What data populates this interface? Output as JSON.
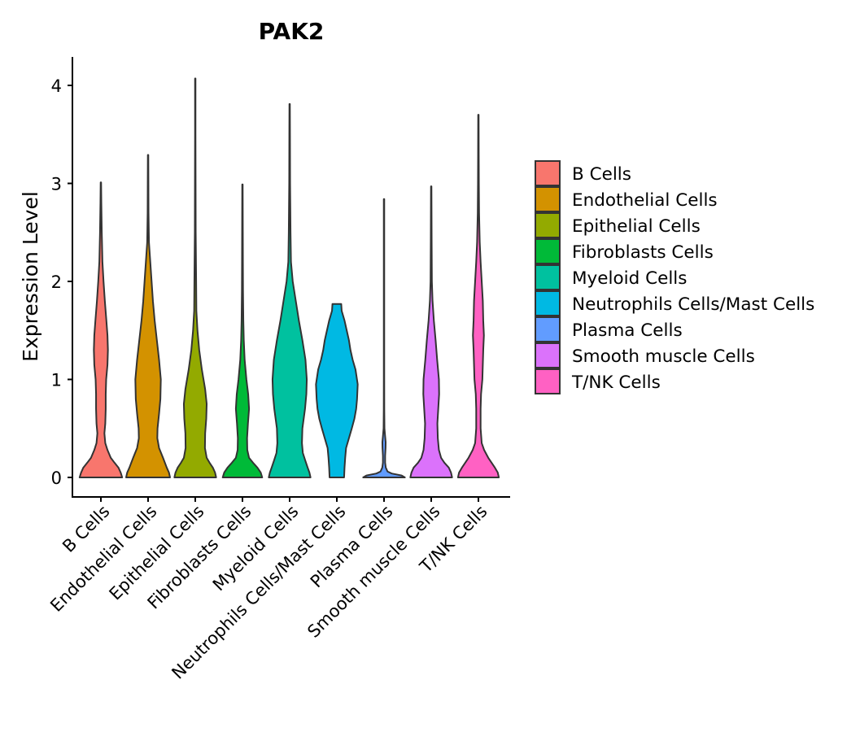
{
  "chart_data": {
    "type": "violin",
    "title": "PAK2",
    "xlabel": "",
    "ylabel": "Expression Level",
    "ylim": [
      0,
      4.3
    ],
    "yticks": [
      0,
      1,
      2,
      3,
      4
    ],
    "categories": [
      "B Cells",
      "Endothelial Cells",
      "Epithelial Cells",
      "Fibroblasts Cells",
      "Myeloid Cells",
      "Neutrophils Cells/Mast Cells",
      "Plasma Cells",
      "Smooth muscle Cells",
      "T/NK Cells"
    ],
    "colors": [
      "#F8766D",
      "#D39200",
      "#93AA00",
      "#00BA38",
      "#00C19F",
      "#00B9E3",
      "#619CFF",
      "#DB72FB",
      "#FF61C3"
    ],
    "max_values": [
      3.01,
      3.29,
      4.07,
      2.99,
      3.81,
      1.77,
      2.84,
      2.97,
      3.7
    ],
    "density_profiles": [
      [
        [
          0,
          0.97
        ],
        [
          0.05,
          0.9
        ],
        [
          0.1,
          0.8
        ],
        [
          0.15,
          0.62
        ],
        [
          0.2,
          0.45
        ],
        [
          0.28,
          0.3
        ],
        [
          0.35,
          0.2
        ],
        [
          0.45,
          0.16
        ],
        [
          0.55,
          0.2
        ],
        [
          0.7,
          0.22
        ],
        [
          0.85,
          0.22
        ],
        [
          1.0,
          0.24
        ],
        [
          1.15,
          0.3
        ],
        [
          1.3,
          0.32
        ],
        [
          1.45,
          0.3
        ],
        [
          1.6,
          0.25
        ],
        [
          1.8,
          0.18
        ],
        [
          2.0,
          0.12
        ],
        [
          2.2,
          0.07
        ],
        [
          2.5,
          0.04
        ],
        [
          2.8,
          0.02
        ],
        [
          3.01,
          0.01
        ]
      ],
      [
        [
          0,
          1.0
        ],
        [
          0.05,
          0.95
        ],
        [
          0.1,
          0.85
        ],
        [
          0.2,
          0.68
        ],
        [
          0.3,
          0.5
        ],
        [
          0.4,
          0.42
        ],
        [
          0.5,
          0.43
        ],
        [
          0.65,
          0.5
        ],
        [
          0.8,
          0.56
        ],
        [
          1.0,
          0.58
        ],
        [
          1.2,
          0.5
        ],
        [
          1.4,
          0.4
        ],
        [
          1.6,
          0.3
        ],
        [
          1.8,
          0.22
        ],
        [
          2.0,
          0.16
        ],
        [
          2.2,
          0.1
        ],
        [
          2.4,
          0.04
        ],
        [
          2.7,
          0.02
        ],
        [
          3.0,
          0.015
        ],
        [
          3.29,
          0.01
        ]
      ],
      [
        [
          0,
          0.95
        ],
        [
          0.05,
          0.9
        ],
        [
          0.1,
          0.8
        ],
        [
          0.15,
          0.65
        ],
        [
          0.2,
          0.52
        ],
        [
          0.3,
          0.44
        ],
        [
          0.45,
          0.45
        ],
        [
          0.6,
          0.5
        ],
        [
          0.75,
          0.52
        ],
        [
          0.9,
          0.45
        ],
        [
          1.1,
          0.3
        ],
        [
          1.3,
          0.18
        ],
        [
          1.5,
          0.1
        ],
        [
          1.7,
          0.05
        ],
        [
          2.0,
          0.04
        ],
        [
          2.5,
          0.02
        ],
        [
          3.0,
          0.015
        ],
        [
          3.5,
          0.01
        ],
        [
          4.07,
          0.01
        ]
      ],
      [
        [
          0,
          0.9
        ],
        [
          0.05,
          0.83
        ],
        [
          0.1,
          0.68
        ],
        [
          0.15,
          0.48
        ],
        [
          0.2,
          0.3
        ],
        [
          0.28,
          0.22
        ],
        [
          0.4,
          0.21
        ],
        [
          0.55,
          0.25
        ],
        [
          0.7,
          0.3
        ],
        [
          0.85,
          0.26
        ],
        [
          1.0,
          0.18
        ],
        [
          1.2,
          0.1
        ],
        [
          1.4,
          0.06
        ],
        [
          1.6,
          0.04
        ],
        [
          1.9,
          0.025
        ],
        [
          2.2,
          0.02
        ],
        [
          2.6,
          0.015
        ],
        [
          2.99,
          0.01
        ]
      ],
      [
        [
          0,
          0.95
        ],
        [
          0.05,
          0.9
        ],
        [
          0.1,
          0.82
        ],
        [
          0.18,
          0.7
        ],
        [
          0.25,
          0.6
        ],
        [
          0.35,
          0.56
        ],
        [
          0.5,
          0.58
        ],
        [
          0.7,
          0.7
        ],
        [
          0.85,
          0.76
        ],
        [
          1.0,
          0.78
        ],
        [
          1.2,
          0.72
        ],
        [
          1.4,
          0.58
        ],
        [
          1.6,
          0.42
        ],
        [
          1.8,
          0.28
        ],
        [
          2.0,
          0.14
        ],
        [
          2.2,
          0.06
        ],
        [
          2.5,
          0.04
        ],
        [
          3.0,
          0.02
        ],
        [
          3.5,
          0.015
        ],
        [
          3.81,
          0.01
        ]
      ],
      [
        [
          0,
          0.33
        ],
        [
          0.1,
          0.35
        ],
        [
          0.2,
          0.38
        ],
        [
          0.3,
          0.42
        ],
        [
          0.4,
          0.55
        ],
        [
          0.5,
          0.68
        ],
        [
          0.6,
          0.8
        ],
        [
          0.7,
          0.88
        ],
        [
          0.8,
          0.92
        ],
        [
          0.95,
          0.95
        ],
        [
          1.1,
          0.85
        ],
        [
          1.2,
          0.72
        ],
        [
          1.3,
          0.62
        ],
        [
          1.4,
          0.55
        ],
        [
          1.5,
          0.45
        ],
        [
          1.6,
          0.35
        ],
        [
          1.7,
          0.22
        ],
        [
          1.77,
          0.2
        ]
      ],
      [
        [
          0,
          0.95
        ],
        [
          0.02,
          0.8
        ],
        [
          0.04,
          0.35
        ],
        [
          0.06,
          0.16
        ],
        [
          0.1,
          0.08
        ],
        [
          0.15,
          0.05
        ],
        [
          0.22,
          0.05
        ],
        [
          0.3,
          0.07
        ],
        [
          0.36,
          0.075
        ],
        [
          0.42,
          0.05
        ],
        [
          0.5,
          0.02
        ],
        [
          0.7,
          0.012
        ],
        [
          1.0,
          0.01
        ],
        [
          1.5,
          0.01
        ],
        [
          2.0,
          0.01
        ],
        [
          2.5,
          0.01
        ],
        [
          2.84,
          0.01
        ]
      ],
      [
        [
          0,
          0.95
        ],
        [
          0.05,
          0.9
        ],
        [
          0.1,
          0.8
        ],
        [
          0.15,
          0.6
        ],
        [
          0.2,
          0.45
        ],
        [
          0.28,
          0.35
        ],
        [
          0.4,
          0.3
        ],
        [
          0.55,
          0.28
        ],
        [
          0.7,
          0.32
        ],
        [
          0.85,
          0.36
        ],
        [
          1.0,
          0.35
        ],
        [
          1.2,
          0.27
        ],
        [
          1.4,
          0.2
        ],
        [
          1.6,
          0.12
        ],
        [
          1.8,
          0.06
        ],
        [
          2.0,
          0.03
        ],
        [
          2.4,
          0.02
        ],
        [
          2.97,
          0.01
        ]
      ],
      [
        [
          0,
          0.93
        ],
        [
          0.05,
          0.88
        ],
        [
          0.1,
          0.75
        ],
        [
          0.15,
          0.6
        ],
        [
          0.2,
          0.45
        ],
        [
          0.28,
          0.26
        ],
        [
          0.35,
          0.15
        ],
        [
          0.5,
          0.1
        ],
        [
          0.7,
          0.1
        ],
        [
          0.85,
          0.12
        ],
        [
          1.0,
          0.18
        ],
        [
          1.15,
          0.2
        ],
        [
          1.3,
          0.22
        ],
        [
          1.45,
          0.25
        ],
        [
          1.6,
          0.22
        ],
        [
          1.8,
          0.2
        ],
        [
          2.0,
          0.15
        ],
        [
          2.2,
          0.1
        ],
        [
          2.4,
          0.06
        ],
        [
          2.7,
          0.03
        ],
        [
          3.0,
          0.02
        ],
        [
          3.3,
          0.015
        ],
        [
          3.7,
          0.01
        ]
      ]
    ],
    "legend": {
      "position": "right",
      "entries": [
        "B Cells",
        "Endothelial Cells",
        "Epithelial Cells",
        "Fibroblasts Cells",
        "Myeloid Cells",
        "Neutrophils Cells/Mast Cells",
        "Plasma Cells",
        "Smooth muscle Cells",
        "T/NK Cells"
      ]
    }
  }
}
